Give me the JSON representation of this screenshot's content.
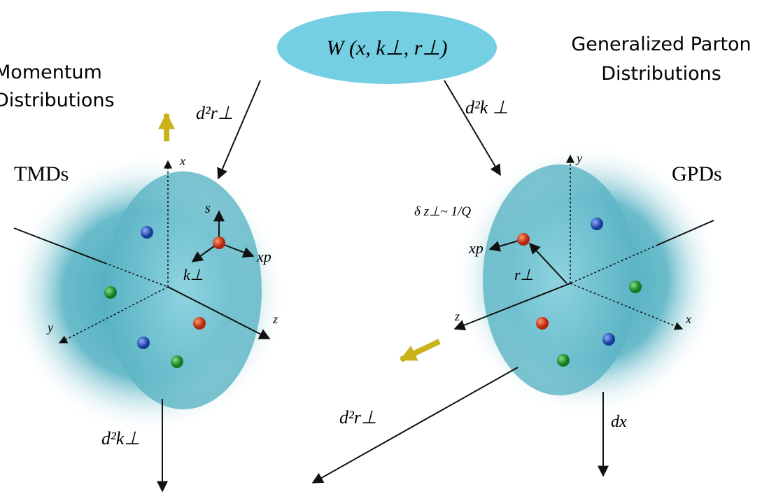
{
  "wigner": "W (x, k⊥, r⊥)",
  "left": {
    "heading": [
      "Momentum",
      "Distributions"
    ],
    "name": "TMDs",
    "arrow_label": "d²r⊥",
    "axes": {
      "x": "x",
      "y": "y",
      "z": "z"
    },
    "quark_labels": {
      "s": "s",
      "xp": "xp",
      "k": "k⊥"
    },
    "bottom_label": "d²k⊥"
  },
  "right": {
    "heading": [
      "Generalized Parton",
      "Distributions"
    ],
    "name": "GPDs",
    "arrow_label": "d²k ⊥",
    "axes": {
      "x": "x",
      "y": "y",
      "z": "z"
    },
    "quark_labels": {
      "xp": "xp",
      "r": "r⊥",
      "delta": "δ z⊥~ 1/Q"
    },
    "bottom_label": "dx"
  },
  "middle_bottom_label": "d²r⊥"
}
